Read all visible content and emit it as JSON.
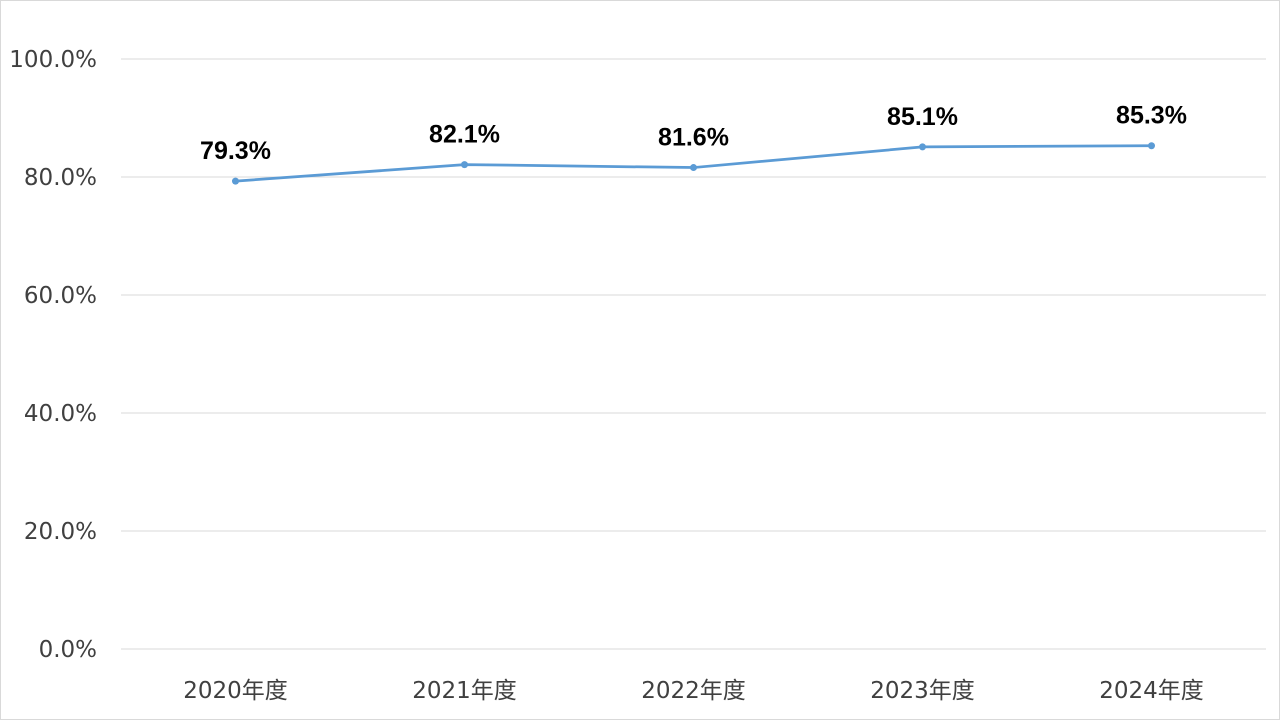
{
  "chart_data": {
    "type": "line",
    "title": "",
    "xlabel": "",
    "ylabel": "",
    "categories": [
      "2020年度",
      "2021年度",
      "2022年度",
      "2023年度",
      "2024年度"
    ],
    "series": [
      {
        "values": [
          79.3,
          82.1,
          81.6,
          85.1,
          85.3
        ],
        "labels": [
          "79.3%",
          "82.1%",
          "81.6%",
          "85.1%",
          "85.3%"
        ],
        "color": "#5b9bd5"
      }
    ],
    "ylim": [
      0,
      100
    ],
    "yticks": [
      0,
      20,
      40,
      60,
      80,
      100
    ],
    "ytick_labels": [
      "0.0%",
      "20.0%",
      "40.0%",
      "60.0%",
      "80.0%",
      "100.0%"
    ],
    "grid": true,
    "legend": "none"
  }
}
